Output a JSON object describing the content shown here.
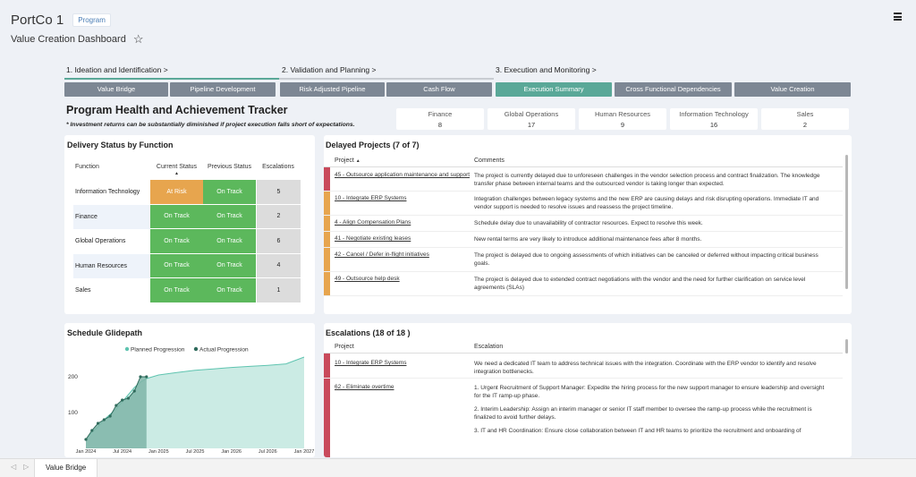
{
  "header": {
    "title": "PortCo 1",
    "badge": "Program",
    "subtitle": "Value Creation Dashboard"
  },
  "steps": [
    {
      "label": "1. Ideation and Identification >",
      "active": true
    },
    {
      "label": "2. Validation and Planning >",
      "active": false
    },
    {
      "label": "3. Execution and Monitoring >",
      "active": false
    }
  ],
  "tabs": [
    {
      "label": "Value Bridge"
    },
    {
      "label": "Pipeline Development"
    },
    {
      "label": "Risk Adjusted Pipeline"
    },
    {
      "label": "Cash Flow"
    },
    {
      "label": "Execution Summary"
    },
    {
      "label": "Cross Functional Dependencies"
    },
    {
      "label": "Value Creation"
    }
  ],
  "tracker": {
    "title": "Program Health and Achievement Tracker",
    "note": "* Investment returns can be substantially diminished if project execution falls short of expectations."
  },
  "kpis": [
    {
      "name": "Finance",
      "value": "8"
    },
    {
      "name": "Global Operations",
      "value": "17"
    },
    {
      "name": "Human Resources",
      "value": "9"
    },
    {
      "name": "Information Technology",
      "value": "16"
    },
    {
      "name": "Sales",
      "value": "2"
    }
  ],
  "delivery": {
    "title": "Delivery Status by Function",
    "headers": {
      "function": "Function",
      "current": "Current Status",
      "previous": "Previous Status",
      "escalations": "Escalations"
    },
    "rows": [
      {
        "function": "Information Technology",
        "current": "At Risk",
        "previous": "On Track",
        "escalations": "5"
      },
      {
        "function": "Finance",
        "current": "On Track",
        "previous": "On Track",
        "escalations": "2"
      },
      {
        "function": "Global Operations",
        "current": "On Track",
        "previous": "On Track",
        "escalations": "6"
      },
      {
        "function": "Human Resources",
        "current": "On Track",
        "previous": "On Track",
        "escalations": "4"
      },
      {
        "function": "Sales",
        "current": "On Track",
        "previous": "On Track",
        "escalations": "1"
      }
    ]
  },
  "delayed": {
    "title": "Delayed Projects (7 of 7)",
    "headers": {
      "project": "Project",
      "comments": "Comments"
    },
    "rows": [
      {
        "project": "45 - Outsource application maintenance and support",
        "comment": "The project is currently delayed due to unforeseen challenges in the vendor selection process and contract finalization. The knowledge transfer phase between internal teams and the outsourced vendor is taking longer than expected.",
        "color": "#c94a5c"
      },
      {
        "project": "10 - Integrate ERP Systems",
        "comment": "Integration challenges between legacy systems and the new ERP are causing delays and risk disrupting operations. Immediate IT and vendor support is needed to resolve issues and reassess the project timeline.",
        "color": "#e7a54e"
      },
      {
        "project": "4 - Align Compensation Plans",
        "comment": "Schedule delay due to unavailability of contractor resources. Expect to resolve this week.",
        "color": "#e7a54e"
      },
      {
        "project": "41 - Negotiate existing leases",
        "comment": "New rental terms are very likely to introduce additional maintenance fees after 8 months.",
        "color": "#e7a54e"
      },
      {
        "project": "42 - Cancel / Defer in-flight initiatives",
        "comment": "The project is delayed due to ongoing assessments of which initiatives can be canceled or deferred without impacting critical business goals.",
        "color": "#e7a54e"
      },
      {
        "project": "49 - Outsource help desk",
        "comment": "The project is delayed due to extended contract negotiations with the vendor and the need for further clarification on service level agreements (SLAs)",
        "color": "#e7a54e"
      }
    ]
  },
  "escalations": {
    "title": "Escalations (18 of 18 )",
    "headers": {
      "project": "Project",
      "escalation": "Escalation"
    },
    "rows": [
      {
        "project": "10 - Integrate ERP Systems",
        "text": "We need a dedicated IT team to address technical issues with the integration. Coordinate with the ERP vendor to identify and resolve integration bottlenecks."
      },
      {
        "project": "62 - Eliminate overtime",
        "text": "1. Urgent Recruitment of Support Manager: Expedite the hiring process for the new support manager to ensure leadership and oversight for the IT ramp-up phase.",
        "text2": "2. Interim Leadership: Assign an interim manager or senior IT staff member to oversee the ramp-up process while the recruitment is finalized to avoid further delays.",
        "text3": "3. IT and HR Coordination: Ensure close collaboration between IT and HR teams to prioritize the recruitment and onboarding of"
      }
    ]
  },
  "glidepath": {
    "title": "Schedule Glidepath",
    "legend": [
      "Planned Progression",
      "Actual Progression"
    ]
  },
  "chart_data": {
    "type": "area",
    "title": "Schedule Glidepath",
    "x_ticks": [
      "Jan 2024",
      "Jul 2024",
      "Jan 2025",
      "Jul 2025",
      "Jan 2026",
      "Jul 2026",
      "Jan 2027"
    ],
    "y_ticks": [
      100,
      200
    ],
    "ylim": [
      0,
      260
    ],
    "colors": {
      "planned": "#a8ddd2",
      "planned_line": "#5fc4b0",
      "actual": "#7fb5a8",
      "actual_line": "#2f6b5c"
    },
    "series": [
      {
        "name": "Planned Progression",
        "x": [
          0,
          1,
          2,
          3,
          4,
          5,
          6,
          7,
          8,
          9,
          10,
          11,
          12,
          15,
          18,
          21,
          24,
          27,
          30,
          33,
          36
        ],
        "y": [
          25,
          45,
          60,
          80,
          95,
          110,
          130,
          150,
          170,
          185,
          195,
          200,
          205,
          212,
          218,
          222,
          226,
          229,
          232,
          236,
          255
        ]
      },
      {
        "name": "Actual Progression",
        "x": [
          0,
          1,
          2,
          3,
          4,
          5,
          6,
          7,
          8,
          9,
          10
        ],
        "y": [
          25,
          50,
          70,
          80,
          90,
          120,
          135,
          140,
          160,
          200,
          200
        ]
      }
    ]
  },
  "bottom": {
    "tab": "Value Bridge"
  }
}
